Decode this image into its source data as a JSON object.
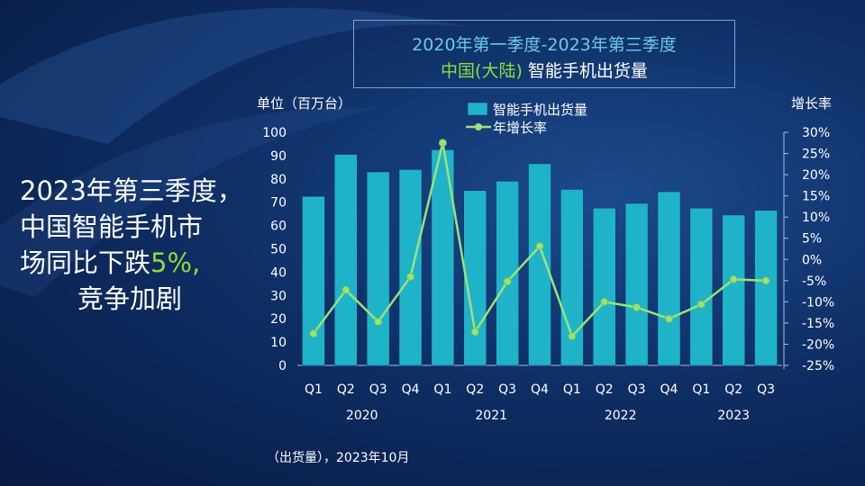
{
  "title": {
    "line1": "2020年第一季度-2023年第三季度",
    "line2_region": "中国(大陆)",
    "line2_metric": "智能手机出货量"
  },
  "headline": {
    "line1": "2023年第三季度，",
    "line2": "中国智能手机市",
    "line3_prefix": "场同比下跌",
    "line3_highlight": "5%,",
    "line4": "竞争加剧"
  },
  "footnote": "（出货量），2023年10月",
  "chart_data": {
    "type": "bar",
    "left_axis_title": "单位（百万台）",
    "right_axis_title": "增长率",
    "ylim": [
      0,
      100
    ],
    "y_ticks": [
      "0",
      "10",
      "20",
      "30",
      "40",
      "50",
      "60",
      "70",
      "80",
      "90",
      "100"
    ],
    "y2lim": [
      -25,
      30
    ],
    "y2_ticks": [
      "30%",
      "25%",
      "20%",
      "15%",
      "10%",
      "5%",
      "0%",
      "-5%",
      "-10%",
      "-15%",
      "-20%",
      "-25%"
    ],
    "categories": [
      "Q1",
      "Q2",
      "Q3",
      "Q4",
      "Q1",
      "Q2",
      "Q3",
      "Q4",
      "Q1",
      "Q2",
      "Q3",
      "Q4",
      "Q1",
      "Q2",
      "Q3"
    ],
    "years": [
      {
        "label": "2020",
        "start": 0,
        "end": 3
      },
      {
        "label": "2021",
        "start": 4,
        "end": 7
      },
      {
        "label": "2022",
        "start": 8,
        "end": 11
      },
      {
        "label": "2023",
        "start": 12,
        "end": 14
      }
    ],
    "series": [
      {
        "name": "智能手机出货量",
        "kind": "bar",
        "color": "#1fb3c9",
        "values": [
          72.5,
          90.5,
          83,
          84,
          92.5,
          75,
          79,
          86.5,
          75.5,
          67.5,
          69.5,
          74.5,
          67.5,
          64.5,
          66.5
        ]
      },
      {
        "name": "年增长率",
        "kind": "line",
        "axis": "right",
        "color": "#9be27a",
        "values": [
          -17.5,
          -7.2,
          -14.7,
          -4.1,
          27.5,
          -17.1,
          -5.2,
          3.1,
          -18.1,
          -10,
          -11.3,
          -14,
          -10.6,
          -4.7,
          -5
        ]
      }
    ],
    "grid": false,
    "legend": "top-center"
  }
}
